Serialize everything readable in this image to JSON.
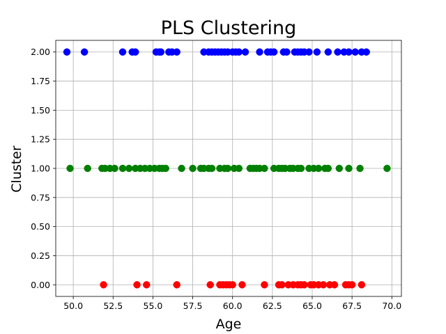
{
  "chart_data": {
    "type": "scatter",
    "title": "PLS Clustering",
    "xlabel": "Age",
    "ylabel": "Cluster",
    "xlim": [
      48.9,
      70.6
    ],
    "ylim": [
      -0.1,
      2.1
    ],
    "grid": true,
    "x_ticks": [
      50.0,
      52.5,
      55.0,
      57.5,
      60.0,
      62.5,
      65.0,
      67.5,
      70.0
    ],
    "x_tick_labels": [
      "50.0",
      "52.5",
      "55.0",
      "57.5",
      "60.0",
      "62.5",
      "65.0",
      "67.5",
      "70.0"
    ],
    "y_ticks": [
      0.0,
      0.25,
      0.5,
      0.75,
      1.0,
      1.25,
      1.5,
      1.75,
      2.0
    ],
    "y_tick_labels": [
      "0.00",
      "0.25",
      "0.50",
      "0.75",
      "1.00",
      "1.25",
      "1.50",
      "1.75",
      "2.00"
    ],
    "series": [
      {
        "color": "#0000ff",
        "y": 2,
        "x": [
          49.6,
          50.7,
          53.1,
          53.7,
          53.9,
          55.2,
          55.4,
          55.5,
          56.0,
          56.2,
          56.5,
          58.2,
          58.5,
          58.7,
          58.9,
          59.1,
          59.3,
          59.5,
          59.7,
          60.0,
          60.2,
          60.4,
          60.8,
          61.7,
          62.2,
          62.4,
          62.6,
          63.2,
          63.4,
          63.9,
          64.1,
          64.3,
          64.5,
          64.8,
          65.3,
          66.0,
          66.6,
          67.0,
          67.3,
          67.7,
          68.1,
          68.4
        ]
      },
      {
        "color": "#008000",
        "y": 1,
        "x": [
          49.8,
          50.9,
          51.8,
          52.0,
          52.3,
          52.6,
          53.1,
          53.5,
          53.9,
          54.2,
          54.5,
          54.8,
          55.1,
          55.4,
          55.6,
          55.8,
          56.8,
          57.5,
          58.0,
          58.2,
          58.5,
          58.7,
          59.2,
          59.5,
          59.7,
          60.1,
          60.4,
          61.1,
          61.3,
          61.5,
          61.7,
          62.0,
          62.6,
          62.9,
          63.1,
          63.3,
          63.6,
          63.8,
          64.1,
          64.3,
          64.8,
          65.1,
          65.4,
          65.8,
          66.0,
          66.7,
          67.3,
          68.0,
          69.7
        ]
      },
      {
        "color": "#ff0000",
        "y": 0,
        "x": [
          51.9,
          54.0,
          54.6,
          56.5,
          58.6,
          59.2,
          59.4,
          59.6,
          59.8,
          60.0,
          60.6,
          62.0,
          62.9,
          63.1,
          63.5,
          63.8,
          64.1,
          64.3,
          64.5,
          64.9,
          65.1,
          65.4,
          65.7,
          66.1,
          66.4,
          67.1,
          67.3,
          67.5,
          68.1
        ]
      }
    ]
  }
}
